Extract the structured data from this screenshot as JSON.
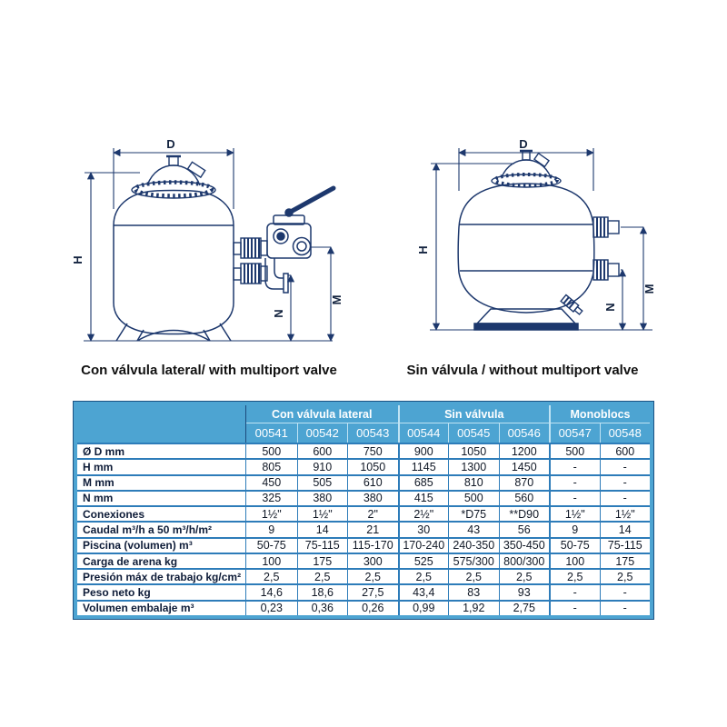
{
  "colors": {
    "header_blue": "#4da4d2",
    "frame_navy": "#1c5283",
    "grid_blue": "#2d7cb9",
    "drawing_navy": "#1d386d",
    "text_dark": "#101826"
  },
  "diagrams": {
    "left": {
      "caption": "Con válvula lateral/ with multiport valve",
      "dim_d": "D",
      "dim_h": "H",
      "dim_m": "M",
      "dim_n": "N"
    },
    "right": {
      "caption": "Sin válvula / without multiport valve",
      "dim_d": "D",
      "dim_h": "H",
      "dim_m": "M",
      "dim_n": "N"
    }
  },
  "table": {
    "groups": [
      {
        "label": "Con válvula lateral",
        "span": 3
      },
      {
        "label": "Sin válvula",
        "span": 3
      },
      {
        "label": "Monoblocs",
        "span": 2
      }
    ],
    "models": [
      "00541",
      "00542",
      "00543",
      "00544",
      "00545",
      "00546",
      "00547",
      "00548"
    ],
    "rows": [
      {
        "label": "Ø D mm",
        "values": [
          "500",
          "600",
          "750",
          "900",
          "1050",
          "1200",
          "500",
          "600"
        ]
      },
      {
        "label": "H mm",
        "values": [
          "805",
          "910",
          "1050",
          "1145",
          "1300",
          "1450",
          "-",
          "-"
        ]
      },
      {
        "label": "M mm",
        "values": [
          "450",
          "505",
          "610",
          "685",
          "810",
          "870",
          "-",
          "-"
        ]
      },
      {
        "label": "N mm",
        "values": [
          "325",
          "380",
          "380",
          "415",
          "500",
          "560",
          "-",
          "-"
        ]
      },
      {
        "label": "Conexiones",
        "values": [
          "1½\"",
          "1½\"",
          "2\"",
          "2½\"",
          "*D75",
          "**D90",
          "1½\"",
          "1½\""
        ]
      },
      {
        "label": "Caudal m³/h a 50 m³/h/m²",
        "values": [
          "9",
          "14",
          "21",
          "30",
          "43",
          "56",
          "9",
          "14"
        ]
      },
      {
        "label": "Piscina (volumen) m³",
        "values": [
          "50-75",
          "75-115",
          "115-170",
          "170-240",
          "240-350",
          "350-450",
          "50-75",
          "75-115"
        ]
      },
      {
        "label": "Carga de arena kg",
        "values": [
          "100",
          "175",
          "300",
          "525",
          "575/300",
          "800/300",
          "100",
          "175"
        ]
      },
      {
        "label": "Presión máx de trabajo kg/cm²",
        "values": [
          "2,5",
          "2,5",
          "2,5",
          "2,5",
          "2,5",
          "2,5",
          "2,5",
          "2,5"
        ]
      },
      {
        "label": "Peso neto kg",
        "values": [
          "14,6",
          "18,6",
          "27,5",
          "43,4",
          "83",
          "93",
          "-",
          "-"
        ]
      },
      {
        "label": "Volumen embalaje m³",
        "values": [
          "0,23",
          "0,36",
          "0,26",
          "0,99",
          "1,92",
          "2,75",
          "-",
          "-"
        ]
      }
    ]
  }
}
